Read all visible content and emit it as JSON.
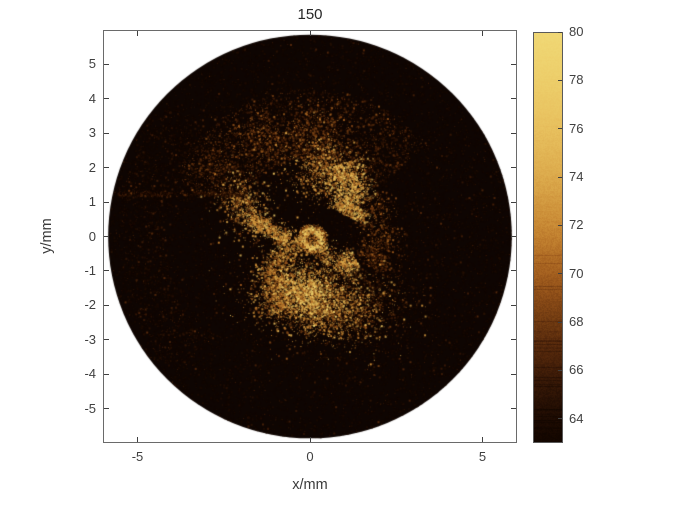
{
  "chart_data": {
    "type": "heatmap",
    "title": "150",
    "xlabel": "x/mm",
    "ylabel": "y/mm",
    "xlim": [
      -6,
      6
    ],
    "ylim": [
      -6,
      6
    ],
    "xticks": [
      -5,
      0,
      5
    ],
    "yticks": [
      5,
      4,
      3,
      2,
      1,
      0,
      -1,
      -2,
      -3,
      -4,
      -5
    ],
    "grid": false,
    "legend": null,
    "colorbar": {
      "position": "right",
      "vmin": 63,
      "vmax": 80,
      "ticks": [
        64,
        66,
        68,
        70,
        72,
        74,
        76,
        78,
        80
      ],
      "colormap_stops": [
        {
          "v": 63,
          "color": "#120600"
        },
        {
          "v": 64,
          "color": "#1d0b02"
        },
        {
          "v": 65,
          "color": "#2c1305"
        },
        {
          "v": 66,
          "color": "#401d08"
        },
        {
          "v": 67,
          "color": "#56290c"
        },
        {
          "v": 68,
          "color": "#6f3a11"
        },
        {
          "v": 69,
          "color": "#8a4b17"
        },
        {
          "v": 70,
          "color": "#a35f1f"
        },
        {
          "v": 71,
          "color": "#b77429"
        },
        {
          "v": 72,
          "color": "#c98a35"
        },
        {
          "v": 74,
          "color": "#dcaa4c"
        },
        {
          "v": 76,
          "color": "#e8c05e"
        },
        {
          "v": 78,
          "color": "#edce6a"
        },
        {
          "v": 80,
          "color": "#f0d875"
        }
      ]
    },
    "image": {
      "kind": "intravascular OCT cross-section, frame 150",
      "field_radius_mm": 5.85,
      "background_level": 0.02,
      "background_speckle": {
        "density": 13000,
        "level": 0.07
      },
      "features": [
        {
          "name": "catheter-outer-ring",
          "type": "ring",
          "x": 0.05,
          "y": -0.05,
          "r": 0.36,
          "width": 0.05,
          "level": 0.45,
          "density": 420
        },
        {
          "name": "catheter-sheath-ring",
          "type": "ring",
          "x": 0.05,
          "y": -0.05,
          "r": 0.26,
          "width": 0.05,
          "level": 0.78,
          "density": 620
        },
        {
          "name": "catheter-inner-specks",
          "type": "cloud",
          "x": 0.05,
          "y": -0.05,
          "sx": 0.1,
          "sy": 0.1,
          "rot": 0,
          "level": 0.4,
          "density": 90
        },
        {
          "name": "upper-diffuse-arc",
          "type": "arcband",
          "x": 0,
          "y": 0,
          "r0": 2.3,
          "r1": 4.3,
          "a0": 38,
          "a1": 158,
          "level": 0.16,
          "density": 3000
        },
        {
          "name": "upper-left-cloud",
          "type": "cloud",
          "x": -1.35,
          "y": 2.85,
          "sx": 0.55,
          "sy": 0.4,
          "rot": 0,
          "level": 0.28,
          "density": 520
        },
        {
          "name": "upper-far-left-cloud",
          "type": "cloud",
          "x": -2.85,
          "y": 2.0,
          "sx": 0.35,
          "sy": 0.3,
          "rot": 0,
          "level": 0.22,
          "density": 260
        },
        {
          "name": "top-cloud",
          "type": "cloud",
          "x": 0.1,
          "y": 2.95,
          "sx": 0.45,
          "sy": 0.5,
          "rot": 0,
          "level": 0.3,
          "density": 520
        },
        {
          "name": "upper-right-blob",
          "type": "cloud",
          "x": 0.35,
          "y": 1.95,
          "sx": 0.5,
          "sy": 0.45,
          "rot": -20,
          "level": 0.48,
          "density": 950
        },
        {
          "name": "right-comma-band",
          "type": "streak",
          "pts": [
            [
              0.95,
              2.15
            ],
            [
              1.12,
              1.55
            ],
            [
              1.25,
              0.95
            ],
            [
              1.08,
              0.6
            ]
          ],
          "w": 0.3,
          "level": 0.6,
          "density": 1500
        },
        {
          "name": "right-outer-arc",
          "type": "streak",
          "pts": [
            [
              1.75,
              1.2
            ],
            [
              2.1,
              0.35
            ],
            [
              2.0,
              -0.4
            ],
            [
              1.7,
              -0.85
            ]
          ],
          "w": 0.28,
          "level": 0.26,
          "density": 750
        },
        {
          "name": "left-wing-cluster",
          "type": "cloud",
          "x": -1.9,
          "y": 0.85,
          "sx": 0.38,
          "sy": 0.48,
          "rot": 25,
          "level": 0.52,
          "density": 700
        },
        {
          "name": "left-wing-streak",
          "type": "streak",
          "pts": [
            [
              -1.75,
              0.55
            ],
            [
              -1.2,
              0.25
            ],
            [
              -0.68,
              -0.1
            ]
          ],
          "w": 0.13,
          "level": 0.58,
          "density": 620
        },
        {
          "name": "hub-wedge",
          "type": "cloud",
          "x": -0.58,
          "y": -0.28,
          "sx": 0.24,
          "sy": 0.3,
          "rot": 30,
          "level": 0.52,
          "density": 420
        },
        {
          "name": "lower-left-arm",
          "type": "streak",
          "pts": [
            [
              -0.9,
              -0.5
            ],
            [
              -1.12,
              -1.4
            ],
            [
              -0.85,
              -2.15
            ]
          ],
          "w": 0.22,
          "level": 0.48,
          "density": 850
        },
        {
          "name": "bridge-streak",
          "type": "streak",
          "pts": [
            [
              0.25,
              -0.4
            ],
            [
              0.95,
              -0.9
            ],
            [
              1.35,
              -0.72
            ]
          ],
          "w": 0.2,
          "level": 0.58,
          "density": 640
        },
        {
          "name": "bottom-blob",
          "type": "cloud",
          "x": 0.2,
          "y": -1.85,
          "sx": 0.95,
          "sy": 0.55,
          "rot": -12,
          "level": 0.5,
          "density": 3400
        },
        {
          "name": "bottom-blob-core",
          "type": "cloud",
          "x": -0.05,
          "y": -1.65,
          "sx": 0.45,
          "sy": 0.28,
          "rot": -15,
          "level": 0.72,
          "density": 950
        },
        {
          "name": "bottom-right-halo",
          "type": "cloud",
          "x": 1.6,
          "y": -1.7,
          "sx": 0.85,
          "sy": 0.7,
          "rot": 0,
          "level": 0.13,
          "density": 950
        },
        {
          "name": "left-seam-line",
          "type": "streak",
          "pts": [
            [
              -5.6,
              1.26
            ],
            [
              -1.9,
              1.26
            ]
          ],
          "w": 0.05,
          "level": 0.1,
          "density": 420
        },
        {
          "name": "ring-artifact-arcs",
          "type": "arcband",
          "x": 0,
          "y": 0,
          "r0": 4.2,
          "r1": 5.6,
          "a0": 135,
          "a1": 225,
          "level": 0.055,
          "density": 1400
        }
      ]
    },
    "styles": {
      "axis_box_color": "#6a6a6a",
      "tick_color": "#404040",
      "tick_label_color": "#404040",
      "axis_label_color": "#3a3a3a",
      "title_color": "#262626",
      "plot_outside_color": "#ffffff",
      "disc_background_color": "#0e0502"
    }
  }
}
